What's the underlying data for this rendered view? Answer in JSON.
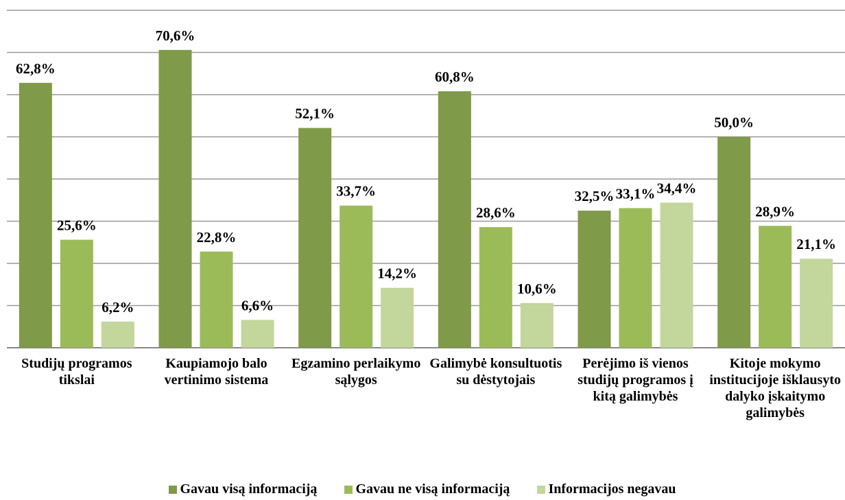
{
  "chart_data": {
    "type": "bar",
    "categories": [
      "Studijų programos tikslai",
      "Kaupiamojo balo vertinimo sistema",
      "Egzamino perlaikymo sąlygos",
      "Galimybė konsultuotis su dėstytojais",
      "Perėjimo iš vienos studijų programos į kitą galimybės",
      "Kitoje mokymo institucijoje išklausyto dalyko įskaitymo galimybės"
    ],
    "series": [
      {
        "name": "Gavau visą informaciją",
        "color": "#7f9a48",
        "values": [
          62.8,
          70.6,
          52.1,
          60.8,
          32.5,
          50.0
        ],
        "value_labels": [
          "62,8%",
          "70,6%",
          "52,1%",
          "60,8%",
          "32,5%",
          "50,0%"
        ]
      },
      {
        "name": "Gavau ne visą informaciją",
        "color": "#9bbb59",
        "values": [
          25.6,
          22.8,
          33.7,
          28.6,
          33.1,
          28.9
        ],
        "value_labels": [
          "25,6%",
          "22,8%",
          "33,7%",
          "28,6%",
          "33,1%",
          "28,9%"
        ]
      },
      {
        "name": "Informacijos negavau",
        "color": "#c3d69b",
        "values": [
          6.2,
          6.6,
          14.2,
          10.6,
          34.4,
          21.1
        ],
        "value_labels": [
          "6,2%",
          "6,6%",
          "14,2%",
          "10,6%",
          "34,4%",
          "21,1%"
        ]
      }
    ],
    "ylim": [
      0,
      80
    ],
    "yticks": [
      0,
      10,
      20,
      30,
      40,
      50,
      60,
      70,
      80
    ],
    "grid": true,
    "legend": "bottom"
  }
}
